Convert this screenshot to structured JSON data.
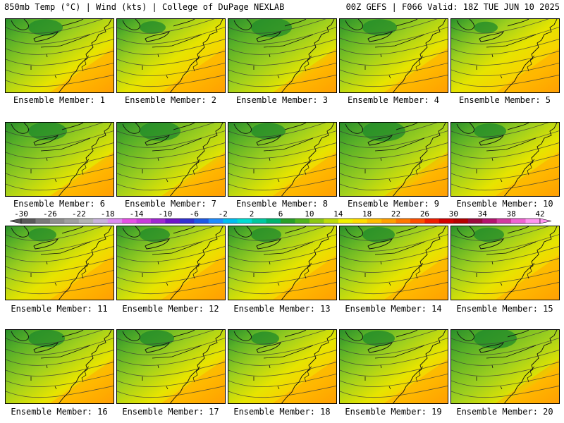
{
  "header": {
    "left": "850mb Temp (°C) | Wind (kts) | College of DuPage NEXLAB",
    "right": "00Z GEFS | F066 Valid: 18Z TUE JUN 10 2025"
  },
  "members": [
    {
      "label": "Ensemble Member: 1",
      "green": 0.55
    },
    {
      "label": "Ensemble Member: 2",
      "green": 0.35
    },
    {
      "label": "Ensemble Member: 3",
      "green": 0.7
    },
    {
      "label": "Ensemble Member: 4",
      "green": 0.55
    },
    {
      "label": "Ensemble Member: 5",
      "green": 0.3
    },
    {
      "label": "Ensemble Member: 6",
      "green": 0.65
    },
    {
      "label": "Ensemble Member: 7",
      "green": 0.7
    },
    {
      "label": "Ensemble Member: 8",
      "green": 0.55
    },
    {
      "label": "Ensemble Member: 9",
      "green": 0.75
    },
    {
      "label": "Ensemble Member: 10",
      "green": 0.5
    },
    {
      "label": "Ensemble Member: 11",
      "green": 0.4
    },
    {
      "label": "Ensemble Member: 12",
      "green": 0.45
    },
    {
      "label": "Ensemble Member: 13",
      "green": 0.45
    },
    {
      "label": "Ensemble Member: 14",
      "green": 0.5
    },
    {
      "label": "Ensemble Member: 15",
      "green": 0.45
    },
    {
      "label": "Ensemble Member: 16",
      "green": 0.6
    },
    {
      "label": "Ensemble Member: 17",
      "green": 0.55
    },
    {
      "label": "Ensemble Member: 18",
      "green": 0.4
    },
    {
      "label": "Ensemble Member: 19",
      "green": 0.5
    },
    {
      "label": "Ensemble Member: 20",
      "green": 0.75
    }
  ],
  "colorbar": {
    "ticks": [
      "-30",
      "-26",
      "-22",
      "-18",
      "-14",
      "-10",
      "-6",
      "-2",
      "2",
      "6",
      "10",
      "14",
      "18",
      "22",
      "26",
      "30",
      "34",
      "38",
      "42"
    ],
    "colors": [
      "#5a5a5a",
      "#7a7a7a",
      "#8e8e8e",
      "#a0a0a0",
      "#b4b4b4",
      "#c8b4dc",
      "#dc8cf0",
      "#e650e6",
      "#c83cdc",
      "#a028d2",
      "#6e14c8",
      "#3232d2",
      "#1e5ae6",
      "#1e8cff",
      "#00bef0",
      "#00dcd2",
      "#00c8a0",
      "#00b46e",
      "#28a028",
      "#50b41e",
      "#8cc814",
      "#bedc0a",
      "#f0f000",
      "#ffdc00",
      "#ffbe00",
      "#ffa000",
      "#ff7800",
      "#ff5000",
      "#f01e00",
      "#d20000",
      "#b40000",
      "#9c0a3c",
      "#b4146e",
      "#d23ca0",
      "#f064d2",
      "#ff96f0"
    ]
  }
}
